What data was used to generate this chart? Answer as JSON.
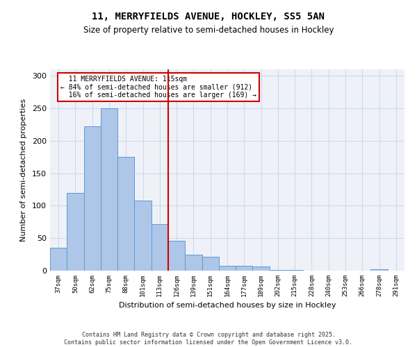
{
  "title_line1": "11, MERRYFIELDS AVENUE, HOCKLEY, SS5 5AN",
  "title_line2": "Size of property relative to semi-detached houses in Hockley",
  "xlabel": "Distribution of semi-detached houses by size in Hockley",
  "ylabel": "Number of semi-detached properties",
  "categories": [
    "37sqm",
    "50sqm",
    "62sqm",
    "75sqm",
    "88sqm",
    "101sqm",
    "113sqm",
    "126sqm",
    "139sqm",
    "151sqm",
    "164sqm",
    "177sqm",
    "189sqm",
    "202sqm",
    "215sqm",
    "228sqm",
    "240sqm",
    "253sqm",
    "266sqm",
    "278sqm",
    "291sqm"
  ],
  "values": [
    35,
    120,
    222,
    250,
    175,
    108,
    72,
    46,
    25,
    21,
    8,
    7,
    6,
    1,
    1,
    0,
    0,
    0,
    0,
    2,
    0
  ],
  "bar_color": "#AEC6E8",
  "bar_edge_color": "#5B9BD5",
  "grid_color": "#D0D8E8",
  "background_color": "#EEF2F8",
  "property_line_x": 6.5,
  "property_label": "11 MERRYFIELDS AVENUE: 115sqm",
  "smaller_pct": "84% of semi-detached houses are smaller (912)",
  "larger_pct": "16% of semi-detached houses are larger (169)",
  "annotation_box_color": "#CC0000",
  "footer_line1": "Contains HM Land Registry data © Crown copyright and database right 2025.",
  "footer_line2": "Contains public sector information licensed under the Open Government Licence v3.0.",
  "ylim": [
    0,
    310
  ],
  "yticks": [
    0,
    50,
    100,
    150,
    200,
    250,
    300
  ]
}
